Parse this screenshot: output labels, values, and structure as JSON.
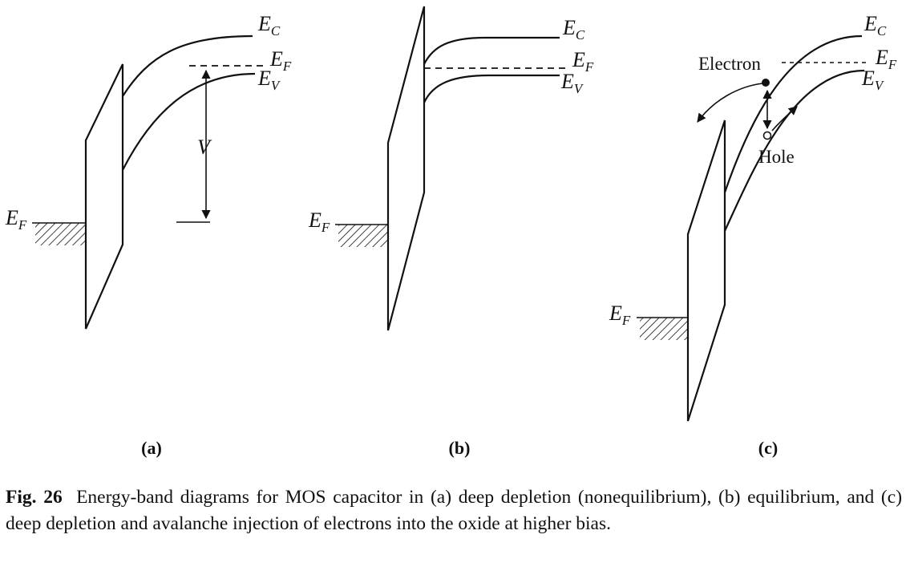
{
  "figure": {
    "panel_a": {
      "label": "(a)",
      "ec": "E",
      "ec_sub": "C",
      "ef": "E",
      "ef_sub": "F",
      "ev": "E",
      "ev_sub": "V",
      "ef_metal": "E",
      "ef_metal_sub": "F",
      "voltage": "V"
    },
    "panel_b": {
      "label": "(b)",
      "ec": "E",
      "ec_sub": "C",
      "ef": "E",
      "ef_sub": "F",
      "ev": "E",
      "ev_sub": "V",
      "ef_metal": "E",
      "ef_metal_sub": "F"
    },
    "panel_c": {
      "label": "(c)",
      "ec": "E",
      "ec_sub": "C",
      "ef": "E",
      "ef_sub": "F",
      "ev": "E",
      "ev_sub": "V",
      "ef_metal": "E",
      "ef_metal_sub": "F",
      "electron": "Electron",
      "hole": "Hole"
    }
  },
  "caption": {
    "label": "Fig. 26",
    "text": "Energy-band diagrams for MOS capacitor in (a) deep depletion (nonequilibrium), (b) equilibrium, and (c) deep depletion and avalanche injection of electrons into the oxide at higher bias."
  }
}
